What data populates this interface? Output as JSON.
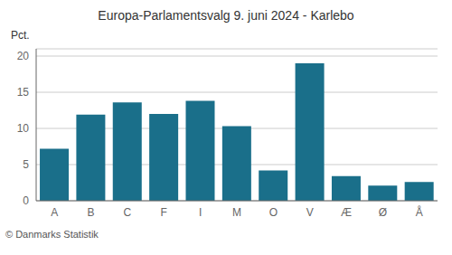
{
  "chart_data": {
    "type": "bar",
    "title": "Europa-Parlamentsvalg 9. juni 2024 - Karlebo",
    "ylabel": "Pct.",
    "footer": "© Danmarks Statistik",
    "categories": [
      "A",
      "B",
      "C",
      "F",
      "I",
      "M",
      "O",
      "V",
      "Æ",
      "Ø",
      "Å"
    ],
    "values": [
      7.2,
      11.9,
      13.6,
      12.0,
      13.8,
      10.3,
      4.2,
      19.0,
      3.4,
      2.1,
      2.6
    ],
    "color": "#1a6f8a",
    "ylim": [
      0,
      21
    ],
    "yticks": [
      0,
      5,
      10,
      15,
      20
    ],
    "grid": true
  }
}
